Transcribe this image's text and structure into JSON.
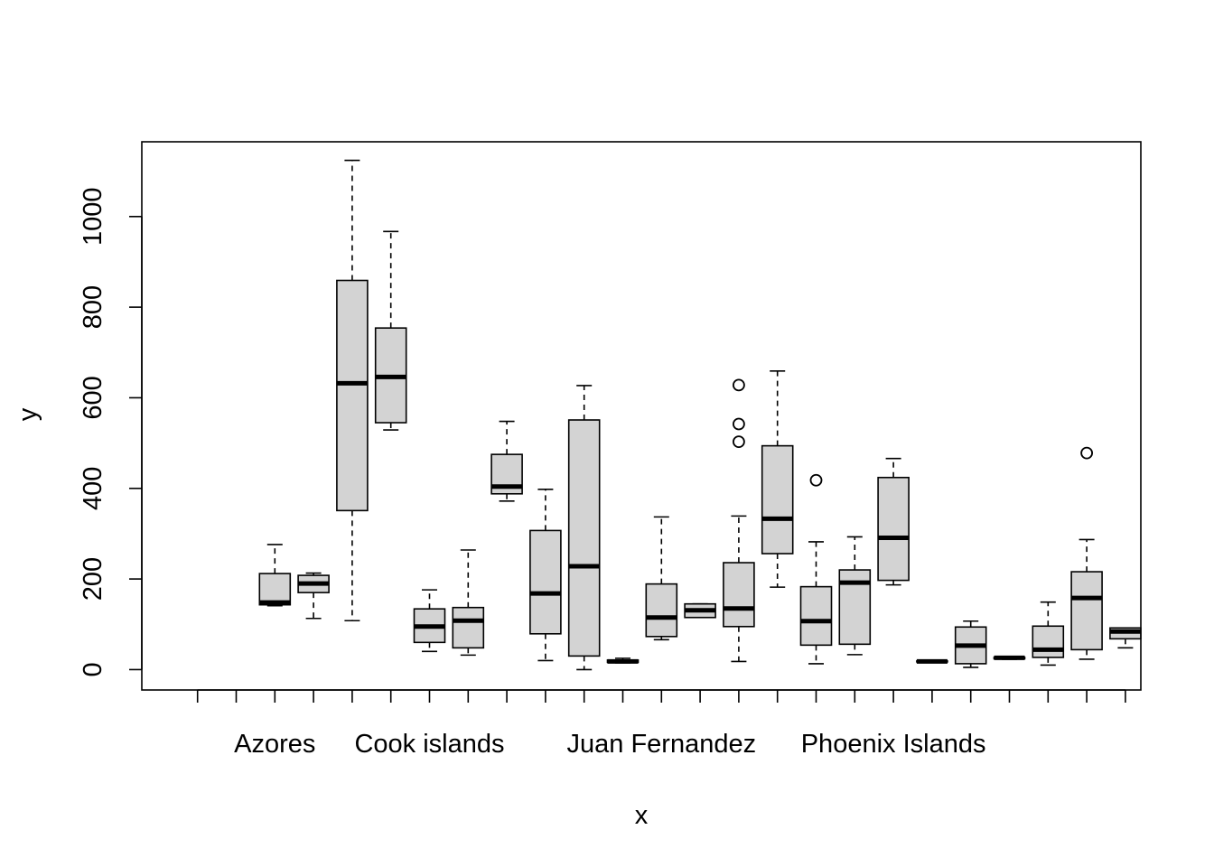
{
  "chart_data": {
    "type": "boxplot",
    "xlabel": "x",
    "ylabel": "y",
    "ylim": [
      -45,
      1165
    ],
    "y_ticks": [
      0,
      200,
      400,
      600,
      800,
      1000
    ],
    "x_ticks_labeled": [
      "Azores",
      "Cook islands",
      "Juan Fernandez",
      "Phoenix Islands"
    ],
    "box_fill": "#d3d3d3",
    "boxes": [
      {
        "pos": 1
      },
      {
        "pos": 2
      },
      {
        "pos": 3,
        "min": 141,
        "q1": 143,
        "median": 148,
        "q3": 212,
        "max": 276
      },
      {
        "pos": 4,
        "min": 113,
        "q1": 170,
        "median": 190,
        "q3": 208,
        "max": 213
      },
      {
        "pos": 5,
        "min": 108,
        "q1": 351,
        "median": 632,
        "q3": 859,
        "max": 1124
      },
      {
        "pos": 6,
        "min": 529,
        "q1": 545,
        "median": 646,
        "q3": 754,
        "max": 967
      },
      {
        "pos": 7,
        "min": 40,
        "q1": 60,
        "median": 95,
        "q3": 134,
        "max": 176
      },
      {
        "pos": 8,
        "min": 32,
        "q1": 48,
        "median": 108,
        "q3": 137,
        "max": 264
      },
      {
        "pos": 9,
        "min": 372,
        "q1": 388,
        "median": 404,
        "q3": 475,
        "max": 548
      },
      {
        "pos": 10,
        "min": 20,
        "q1": 79,
        "median": 168,
        "q3": 307,
        "max": 398
      },
      {
        "pos": 11,
        "min": 0,
        "q1": 30,
        "median": 228,
        "q3": 551,
        "max": 627
      },
      {
        "pos": 12,
        "min": 15,
        "q1": 16,
        "median": 18,
        "q3": 21,
        "max": 25
      },
      {
        "pos": 13,
        "min": 66,
        "q1": 73,
        "median": 115,
        "q3": 189,
        "max": 337
      },
      {
        "pos": 14,
        "min": 115,
        "q1": 115,
        "median": 131,
        "q3": 145,
        "max": 145
      },
      {
        "pos": 15,
        "min": 18,
        "q1": 95,
        "median": 135,
        "q3": 236,
        "max": 339,
        "outliers": [
          503,
          542,
          628
        ]
      },
      {
        "pos": 16,
        "min": 182,
        "q1": 256,
        "median": 333,
        "q3": 494,
        "max": 659
      },
      {
        "pos": 17,
        "min": 13,
        "q1": 54,
        "median": 107,
        "q3": 183,
        "max": 282,
        "outliers": [
          418
        ]
      },
      {
        "pos": 18,
        "min": 33,
        "q1": 56,
        "median": 192,
        "q3": 220,
        "max": 293
      },
      {
        "pos": 19,
        "min": 187,
        "q1": 197,
        "median": 291,
        "q3": 424,
        "max": 466
      },
      {
        "pos": 20,
        "min": 16,
        "q1": 17,
        "median": 18,
        "q3": 19,
        "max": 20
      },
      {
        "pos": 21,
        "min": 5,
        "q1": 13,
        "median": 53,
        "q3": 94,
        "max": 107
      },
      {
        "pos": 22,
        "min": 23,
        "q1": 24,
        "median": 26,
        "q3": 27,
        "max": 28
      },
      {
        "pos": 23,
        "min": 10,
        "q1": 27,
        "median": 44,
        "q3": 96,
        "max": 149
      },
      {
        "pos": 24,
        "min": 23,
        "q1": 44,
        "median": 158,
        "q3": 216,
        "max": 287,
        "outliers": [
          478
        ]
      },
      {
        "pos": 25,
        "min": 48,
        "q1": 68,
        "median": 84,
        "q3": 92,
        "max": 92
      }
    ]
  }
}
